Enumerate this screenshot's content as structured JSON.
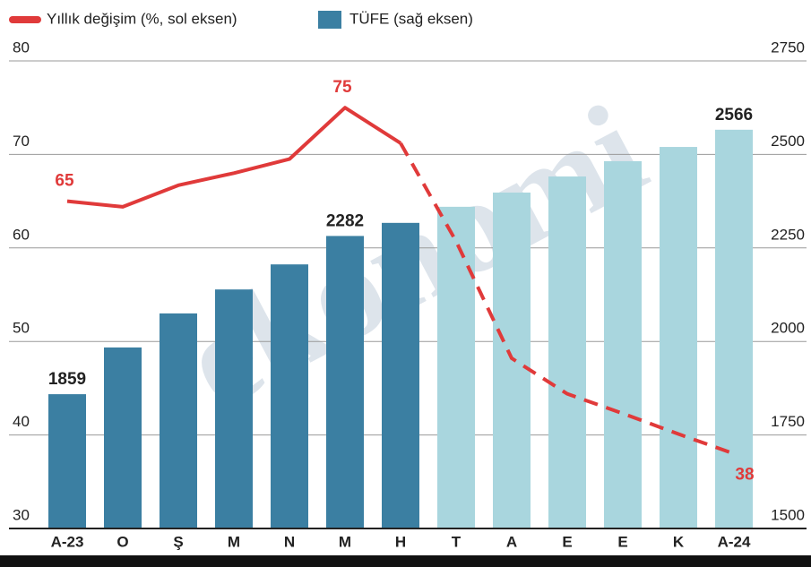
{
  "chart_data": {
    "type": "bar_line",
    "legend_line": "Yıllık değişim (%, sol eksen)",
    "legend_bar": "TÜFE (sağ eksen)",
    "watermark": "ekonomi",
    "categories": [
      "A-23",
      "O",
      "Ş",
      "M",
      "N",
      "M",
      "H",
      "T",
      "A",
      "E",
      "E",
      "K",
      "A-24"
    ],
    "ylim": [
      30,
      80
    ],
    "yticks": [
      30,
      40,
      50,
      60,
      70,
      80
    ],
    "y2lim": [
      1500,
      2750
    ],
    "y2ticks": [
      1500,
      1750,
      2000,
      2250,
      2500,
      2750
    ],
    "grid": true,
    "series": [
      {
        "name": "TÜFE (sağ eksen)",
        "axis": "y2",
        "kind": "bar",
        "color": "#3b7fa2",
        "colors": [
          "#3b7fa2",
          "#3b7fa2",
          "#3b7fa2",
          "#3b7fa2",
          "#3b7fa2",
          "#3b7fa2",
          "#3b7fa2",
          "#a9d6de",
          "#a9d6de",
          "#a9d6de",
          "#a9d6de",
          "#a9d6de",
          "#a9d6de"
        ],
        "values": [
          1859,
          1984,
          2075,
          2139,
          2206,
          2282,
          2317,
          2360,
          2398,
          2441,
          2482,
          2520,
          2566
        ],
        "value_labels": [
          "1859",
          null,
          null,
          null,
          null,
          "2282",
          null,
          null,
          null,
          null,
          null,
          null,
          "2566"
        ]
      },
      {
        "name": "Yıllık değişim (%, sol eksen)",
        "kind": "line",
        "color": "#e03a3a",
        "dashed_from": 6,
        "values": [
          65,
          64.4,
          66.7,
          68,
          69.5,
          75,
          71.2,
          60.7,
          48.2,
          44.4,
          42.3,
          40.1,
          38
        ],
        "value_labels": [
          "65",
          null,
          null,
          null,
          null,
          "75",
          null,
          null,
          null,
          null,
          null,
          null,
          "38"
        ]
      }
    ]
  }
}
